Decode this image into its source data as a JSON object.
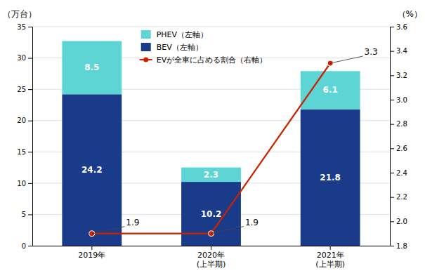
{
  "chart_data": {
    "type": "bar",
    "stacked": true,
    "categories": [
      "2019年",
      "2020年\n(上半期)",
      "2021年\n(上半期)"
    ],
    "series": [
      {
        "name": "BEV（左軸）",
        "color": "#1a3a8a",
        "values": [
          24.2,
          10.2,
          21.8
        ]
      },
      {
        "name": "PHEV（左軸）",
        "color": "#5dd5d5",
        "values": [
          8.5,
          2.3,
          6.1
        ]
      },
      {
        "name": "EVが全車に占める割合（右軸）",
        "type": "line",
        "axis": "y2",
        "color": "#cc2200",
        "marker": "circle",
        "values": [
          1.9,
          1.9,
          3.3
        ]
      }
    ],
    "ylabel": "（万台）",
    "y2label": "（%）",
    "ylim": [
      0,
      35
    ],
    "yticks": [
      0,
      5,
      10,
      15,
      20,
      25,
      30,
      35
    ],
    "y2lim": [
      1.8,
      3.6
    ],
    "y2ticks": [
      1.8,
      {
        "value": 2.0,
        "label": "2.0"
      },
      2.2,
      2.4,
      2.6,
      2.8,
      {
        "value": 3.0,
        "label": "3.0"
      },
      3.2,
      3.4,
      3.6
    ],
    "grid": true,
    "legend": "upper left",
    "data_labels": true
  }
}
